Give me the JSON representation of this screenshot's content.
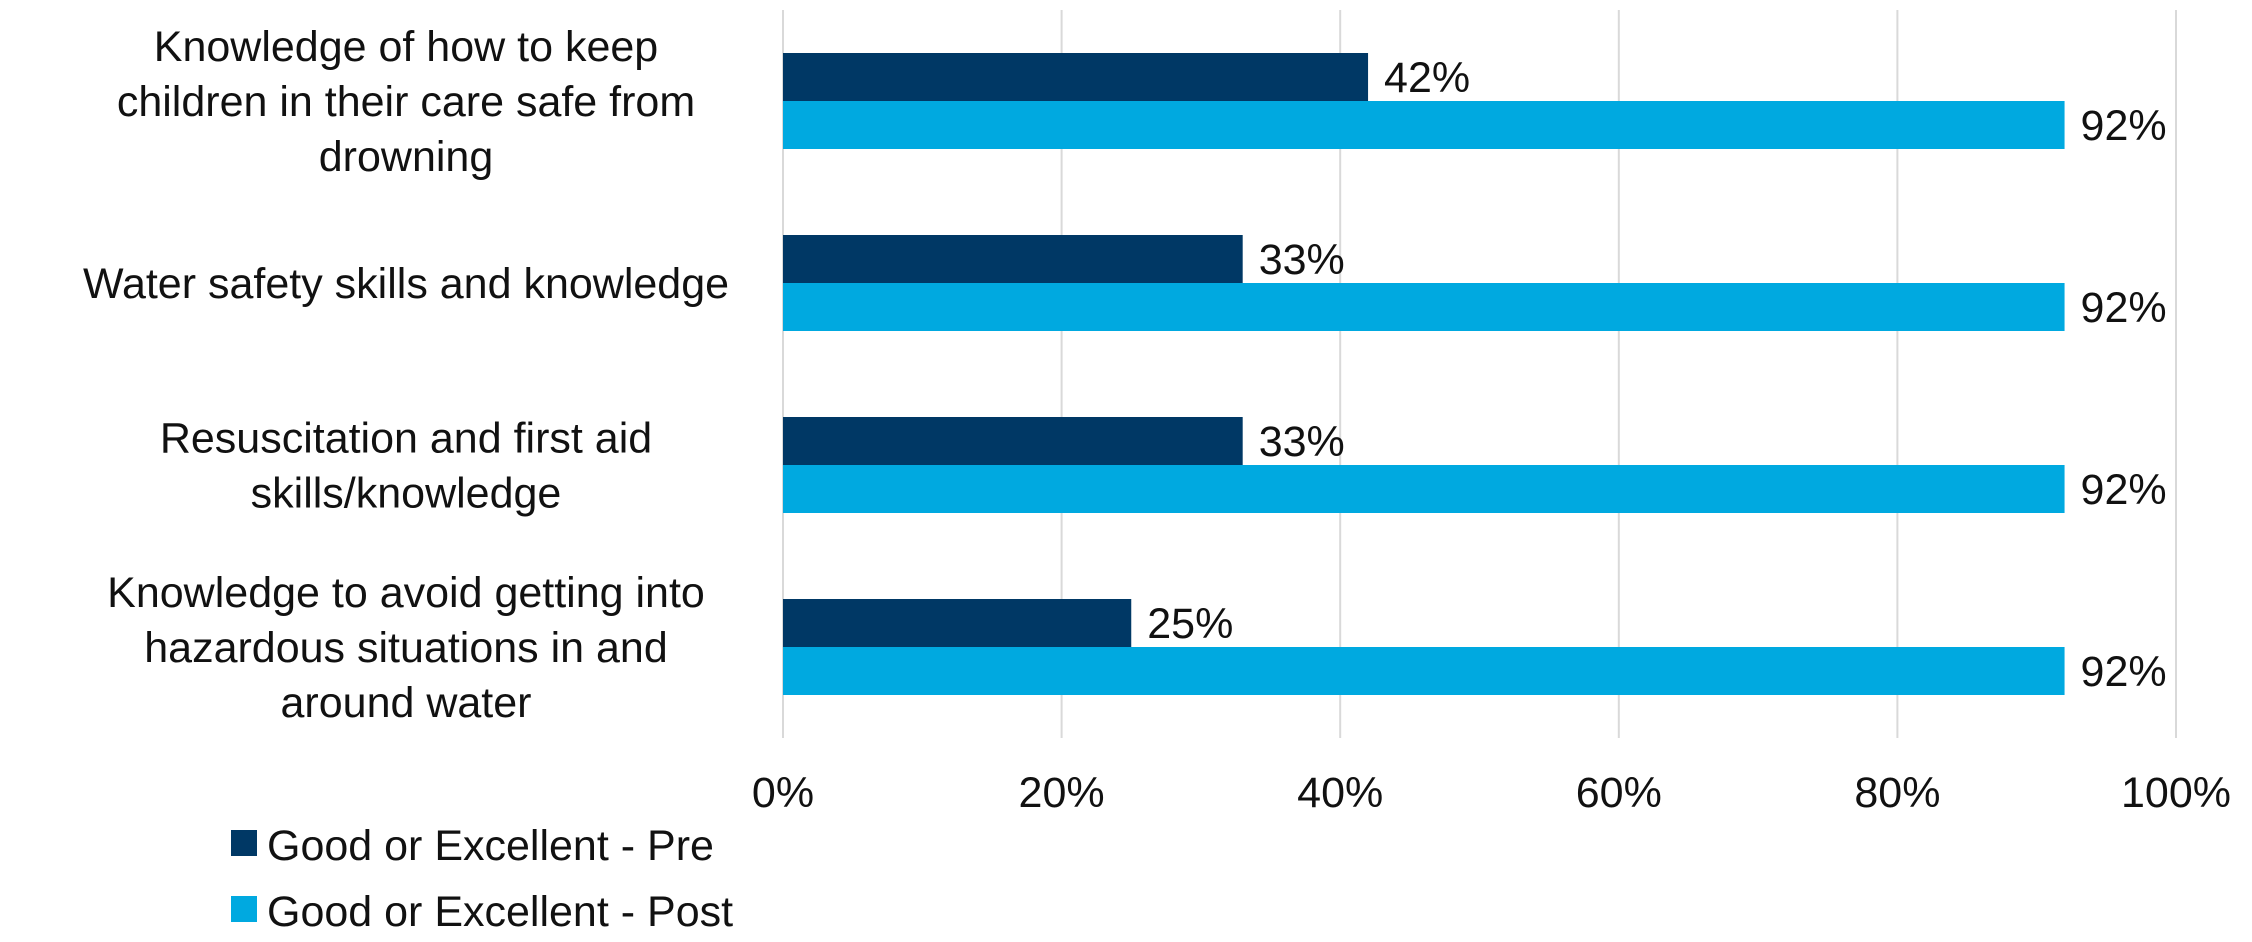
{
  "chart_data": {
    "type": "bar",
    "orientation": "horizontal",
    "categories": [
      [
        "Knowledge of how to keep",
        "children in their care safe from",
        "drowning"
      ],
      [
        "Water safety skills and knowledge"
      ],
      [
        "Resuscitation and first aid",
        "skills/knowledge"
      ],
      [
        "Knowledge to avoid getting into",
        "hazardous situations in and",
        "around water"
      ]
    ],
    "series": [
      {
        "name": "Good or Excellent - Pre",
        "color": "#003865",
        "values": [
          42,
          33,
          33,
          25
        ],
        "labels": [
          "42%",
          "33%",
          "33%",
          "25%"
        ]
      },
      {
        "name": "Good or Excellent - Post",
        "color": "#00a9e0",
        "values": [
          92,
          92,
          92,
          92
        ],
        "labels": [
          "92%",
          "92%",
          "92%",
          "92%"
        ]
      }
    ],
    "xlim": [
      0,
      100
    ],
    "xticks": [
      0,
      20,
      40,
      60,
      80,
      100
    ],
    "xtick_labels": [
      "0%",
      "20%",
      "40%",
      "60%",
      "80%",
      "100%"
    ],
    "grid": true,
    "legend_position": "bottom-left",
    "gridline_color": "#d9d9d9"
  }
}
